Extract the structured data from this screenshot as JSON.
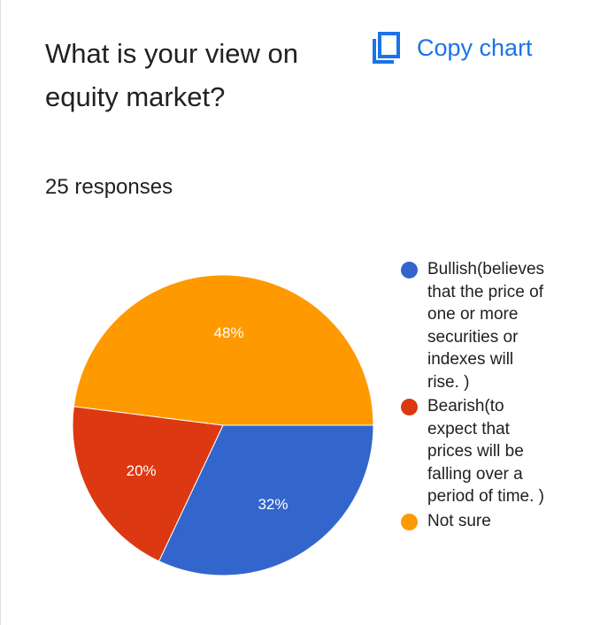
{
  "question": "What is your view on equity market?",
  "copy_chart_label": "Copy chart",
  "copy_icon": "copy-icon",
  "responses_text": "25 responses",
  "chart_data": {
    "type": "pie",
    "slices": [
      {
        "label": "Bullish(believes\nthat the price of\none or more\nsecurities or\nindexes will\nrise. )",
        "value": 32,
        "value_label": "32%",
        "color": "#3366cc"
      },
      {
        "label": "Bearish(to\nexpect that\nprices will be\nfalling over a\nperiod of time. )",
        "value": 20,
        "value_label": "20%",
        "color": "#dc3912"
      },
      {
        "label": "Not sure",
        "value": 48,
        "value_label": "48%",
        "color": "#ff9900"
      }
    ],
    "legend_position": "right"
  }
}
